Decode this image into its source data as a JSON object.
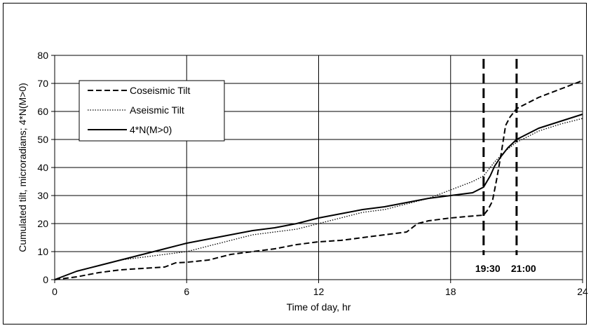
{
  "chart_data": {
    "type": "line",
    "title": "",
    "xlabel": "Time of day, hr",
    "ylabel": "Cumulated tilt, microradians; 4*N(M>0)",
    "xlim": [
      0,
      24
    ],
    "ylim": [
      0,
      80
    ],
    "xticks": [
      0,
      6,
      12,
      18,
      24
    ],
    "yticks": [
      0,
      10,
      20,
      30,
      40,
      50,
      60,
      70,
      80
    ],
    "xtick_labels": [
      "0",
      "6",
      "12",
      "18",
      "24"
    ],
    "ytick_labels": [
      "0",
      "10",
      "20",
      "30",
      "40",
      "50",
      "60",
      "70",
      "80"
    ],
    "grid": true,
    "legend": "upper-left",
    "series": [
      {
        "name": "Coseismic Tilt",
        "style": "dashed",
        "color": "#000000",
        "x": [
          0,
          1,
          2,
          3,
          4,
          5,
          5.5,
          6,
          7,
          8,
          9,
          10,
          11,
          12,
          13,
          14,
          15,
          16,
          16.5,
          17,
          18,
          19,
          19.5,
          19.7,
          19.9,
          20.1,
          20.3,
          20.5,
          20.7,
          21,
          21.5,
          22,
          23,
          24
        ],
        "y": [
          0,
          1,
          2.5,
          3.5,
          4,
          4.5,
          6,
          6.2,
          7,
          9,
          10,
          11,
          12.5,
          13.5,
          14,
          15,
          16,
          17,
          20,
          21,
          22,
          22.7,
          23,
          25,
          28,
          36,
          45,
          55,
          58,
          61,
          63,
          65,
          68,
          71
        ]
      },
      {
        "name": "Aseismic Tilt",
        "style": "dotted",
        "color": "#000000",
        "x": [
          0,
          1,
          2,
          3,
          4,
          5,
          6,
          7,
          8,
          9,
          10,
          11,
          12,
          13,
          14,
          15,
          16,
          17,
          18,
          19,
          19.5,
          20,
          20.5,
          21,
          21.5,
          22,
          23,
          24
        ],
        "y": [
          0,
          3,
          5,
          7,
          8,
          9,
          10,
          12,
          14,
          16,
          17,
          18,
          20,
          22,
          24,
          25,
          27,
          29,
          32,
          35,
          37,
          42,
          46,
          49,
          51,
          53,
          55.5,
          57.5
        ]
      },
      {
        "name": "4*N(M>0)",
        "style": "solid",
        "color": "#000000",
        "x": [
          0,
          1,
          2,
          3,
          4,
          5,
          6,
          7,
          8,
          9,
          10,
          11,
          12,
          13,
          14,
          15,
          16,
          17,
          18,
          19,
          19.5,
          19.8,
          20,
          20.3,
          20.6,
          21,
          21.5,
          22,
          23,
          24
        ],
        "y": [
          0,
          3,
          5,
          7,
          9,
          11,
          13,
          14.5,
          16,
          17.5,
          18.5,
          20,
          22,
          23.5,
          25,
          26,
          27.5,
          29,
          30,
          31,
          33,
          37,
          40.5,
          44,
          47,
          50,
          52,
          54,
          56.5,
          59
        ]
      }
    ],
    "vlines": [
      {
        "x": 19.5,
        "label": "19:30"
      },
      {
        "x": 21.0,
        "label": "21:00"
      }
    ]
  }
}
